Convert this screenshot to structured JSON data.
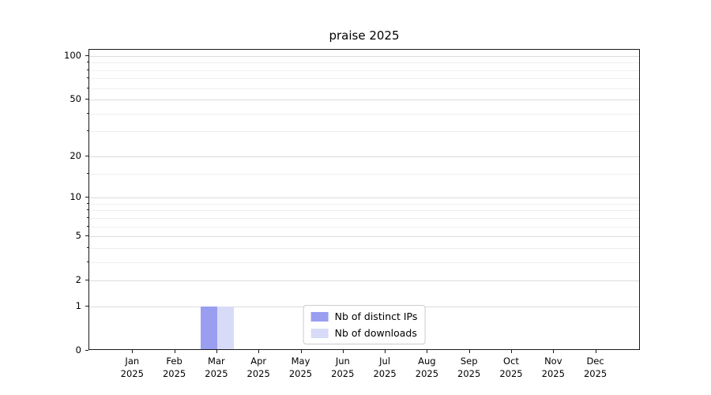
{
  "chart_data": {
    "type": "bar",
    "title": "praise 2025",
    "categories": [
      "Jan",
      "Feb",
      "Mar",
      "Apr",
      "May",
      "Jun",
      "Jul",
      "Aug",
      "Sep",
      "Oct",
      "Nov",
      "Dec"
    ],
    "x_year_label": "2025",
    "series": [
      {
        "name": "Nb of distinct IPs",
        "color": "#9a9ef0",
        "values": [
          0,
          0,
          1,
          0,
          0,
          0,
          0,
          0,
          0,
          0,
          0,
          0
        ]
      },
      {
        "name": "Nb of downloads",
        "color": "#d8dbf8",
        "values": [
          0,
          0,
          1,
          0,
          0,
          0,
          0,
          0,
          0,
          0,
          0,
          0
        ]
      }
    ],
    "yscale": "log1p",
    "ylim": [
      0,
      100
    ],
    "yticks": [
      0,
      1,
      2,
      5,
      10,
      20,
      50,
      100
    ],
    "minor_yticks": [
      3,
      4,
      6,
      7,
      8,
      9,
      15,
      30,
      40,
      60,
      70,
      80,
      90
    ],
    "grid": true,
    "legend_position": "lower center inside"
  }
}
